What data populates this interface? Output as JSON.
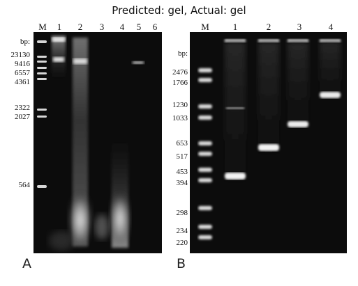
{
  "title": "Predicted: gel, Actual: gel",
  "panel_a": {
    "letter": "A",
    "lanes": [
      "M",
      "1",
      "2",
      "3",
      "4",
      "5",
      "6"
    ],
    "sizes": [
      "bp:",
      "23130",
      "9416",
      "6557",
      "4361",
      "2322",
      "2027",
      "564"
    ]
  },
  "panel_b": {
    "letter": "B",
    "lanes": [
      "M",
      "1",
      "2",
      "3",
      "4"
    ],
    "sizes": [
      "bp:",
      "2476",
      "1766",
      "1230",
      "1033",
      "653",
      "517",
      "453",
      "394",
      "298",
      "234",
      "220"
    ]
  }
}
